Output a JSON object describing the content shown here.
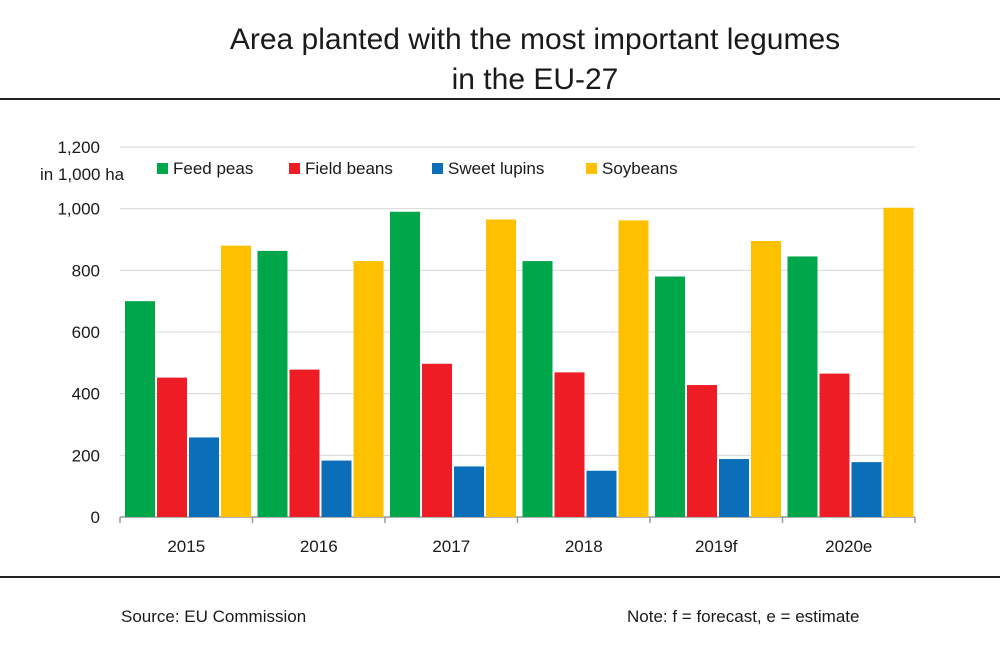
{
  "title_line1": "Area planted with the most important legumes",
  "title_line2": "in the EU-27",
  "footer": {
    "source": "Source: EU Commission",
    "note": "Note: f = forecast, e = estimate"
  },
  "chart_data": {
    "type": "bar",
    "title": "Area planted with the most important legumes in the EU-27",
    "ylabel": "in 1,000 ha",
    "xlabel": "",
    "categories": [
      "2015",
      "2016",
      "2017",
      "2018",
      "2019f",
      "2020e"
    ],
    "series": [
      {
        "name": "Feed peas",
        "color": "#00a64a",
        "values": [
          700,
          863,
          990,
          830,
          780,
          845
        ]
      },
      {
        "name": "Field beans",
        "color": "#ee1c25",
        "values": [
          452,
          478,
          497,
          469,
          428,
          465
        ]
      },
      {
        "name": "Sweet lupins",
        "color": "#0b6eb8",
        "values": [
          258,
          183,
          164,
          150,
          188,
          178
        ]
      },
      {
        "name": "Soybeans",
        "color": "#ffc000",
        "values": [
          880,
          830,
          965,
          962,
          895,
          1003
        ]
      }
    ],
    "ylim": [
      0,
      1200
    ],
    "yticks": [
      "0",
      "200",
      "400",
      "600",
      "800",
      "1,000",
      "1,200"
    ],
    "grid": true,
    "legend_position": "top"
  }
}
